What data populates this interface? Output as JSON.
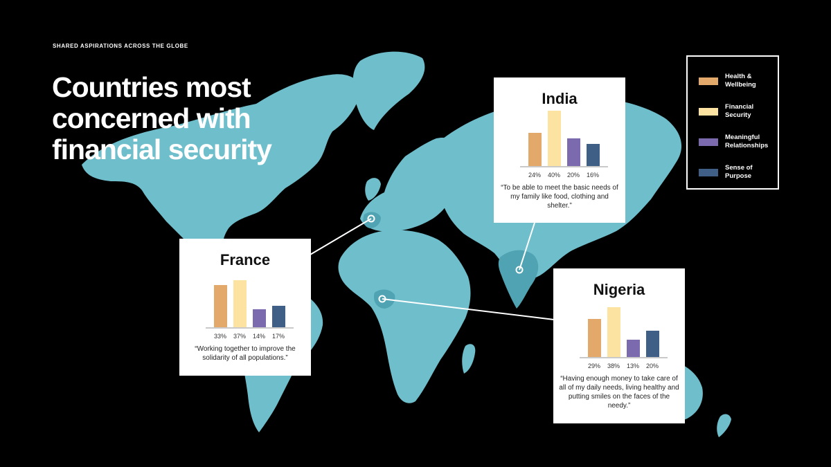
{
  "eyebrow": "SHARED ASPIRATIONS ACROSS THE GLOBE",
  "title": "Countries most concerned with financial security",
  "colors": {
    "health": "#E2A96B",
    "financial": "#FCE3A1",
    "relationships": "#7B6BAE",
    "purpose": "#3F5F86",
    "land": "#6FBECB",
    "highlight": "#4FA3B2"
  },
  "legend": [
    {
      "label": "Health & Wellbeing",
      "color": "#E2A96B"
    },
    {
      "label": "Financial Security",
      "color": "#FCE3A1"
    },
    {
      "label": "Meaningful Relationships",
      "color": "#7B6BAE"
    },
    {
      "label": "Sense of Purpose",
      "color": "#3F5F86"
    }
  ],
  "chart_data": [
    {
      "type": "bar",
      "title": "India",
      "categories": [
        "Health & Wellbeing",
        "Financial Security",
        "Meaningful Relationships",
        "Sense of Purpose"
      ],
      "values": [
        24,
        40,
        20,
        16
      ],
      "labels": [
        "24%",
        "40%",
        "20%",
        "16%"
      ],
      "quote": "“To be able to meet the basic needs of my family like food, clothing and shelter.”"
    },
    {
      "type": "bar",
      "title": "France",
      "categories": [
        "Health & Wellbeing",
        "Financial Security",
        "Meaningful Relationships",
        "Sense of Purpose"
      ],
      "values": [
        33,
        37,
        14,
        17
      ],
      "labels": [
        "33%",
        "37%",
        "14%",
        "17%"
      ],
      "quote": "“Working together to improve the solidarity of all populations.”"
    },
    {
      "type": "bar",
      "title": "Nigeria",
      "categories": [
        "Health & Wellbeing",
        "Financial Security",
        "Meaningful Relationships",
        "Sense of Purpose"
      ],
      "values": [
        29,
        38,
        13,
        20
      ],
      "labels": [
        "29%",
        "38%",
        "13%",
        "20%"
      ],
      "quote": "“Having enough money to take care of all of my daily needs, living healthy and putting smiles on the faces of the needy.”"
    }
  ]
}
